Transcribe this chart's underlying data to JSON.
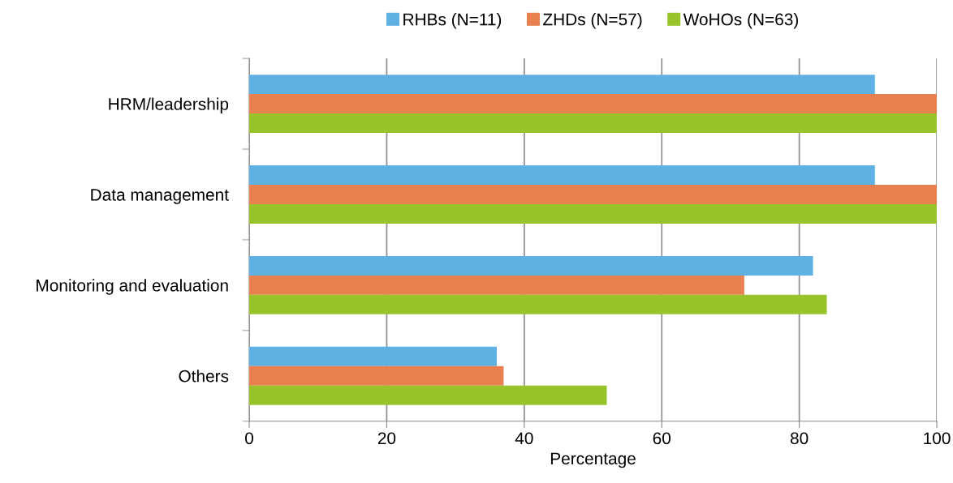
{
  "chart_data": {
    "type": "bar",
    "orientation": "horizontal",
    "xlabel": "Percentage",
    "categories": [
      "HRM/leadership",
      "Data management",
      "Monitoring and evaluation",
      "Others"
    ],
    "series": [
      {
        "name": "RHBs (N=11)",
        "color": "#5fb0e3",
        "values": [
          91,
          91,
          82,
          36
        ]
      },
      {
        "name": "ZHDs (N=57)",
        "color": "#e8804f",
        "values": [
          100,
          100,
          72,
          37
        ]
      },
      {
        "name": "WoHOs (N=63)",
        "color": "#99c32b",
        "values": [
          100,
          100,
          84,
          52
        ]
      }
    ],
    "xlim": [
      0,
      100
    ],
    "xticks": [
      0,
      20,
      40,
      60,
      80,
      100
    ],
    "grid": "x",
    "legend": "top"
  }
}
